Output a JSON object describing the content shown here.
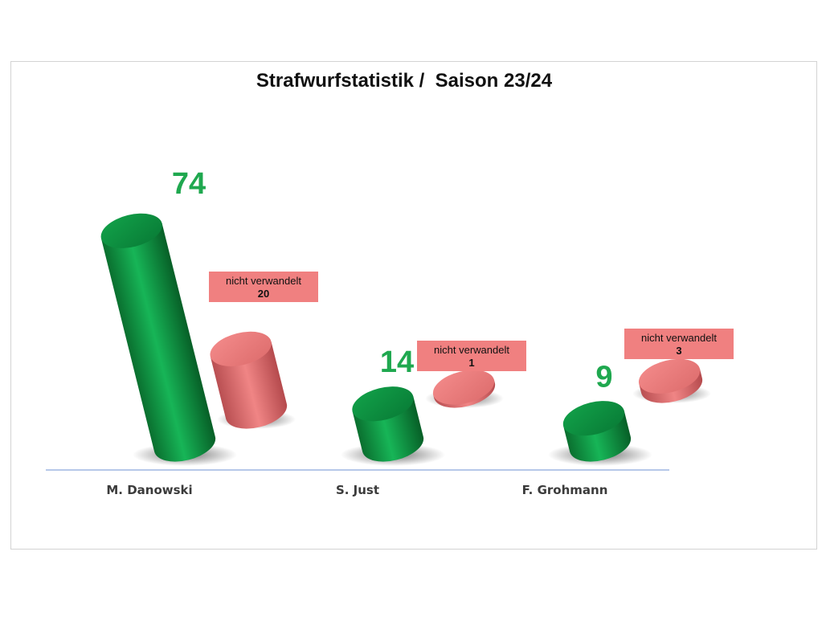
{
  "chart_data": {
    "type": "bar",
    "title": "Strafwurfstatistik /  Saison 23/24",
    "categories": [
      "M. Danowski",
      "S. Just",
      "F. Grohmann"
    ],
    "series": [
      {
        "values": [
          74,
          14,
          9
        ],
        "color": "#0f9a45"
      },
      {
        "values": [
          20,
          1,
          3
        ],
        "color": "#ee7f7f"
      }
    ],
    "data_labels": {
      "scored": [
        "74",
        "14",
        "9"
      ],
      "missed_prefix": "nicht verwandelt",
      "missed": [
        "20",
        "1",
        "3"
      ]
    },
    "colors": {
      "scored_label": "#1fa84f",
      "missed_box": "#f08080",
      "axis": "#8aa6dc"
    },
    "grid": false,
    "legend": "none"
  }
}
